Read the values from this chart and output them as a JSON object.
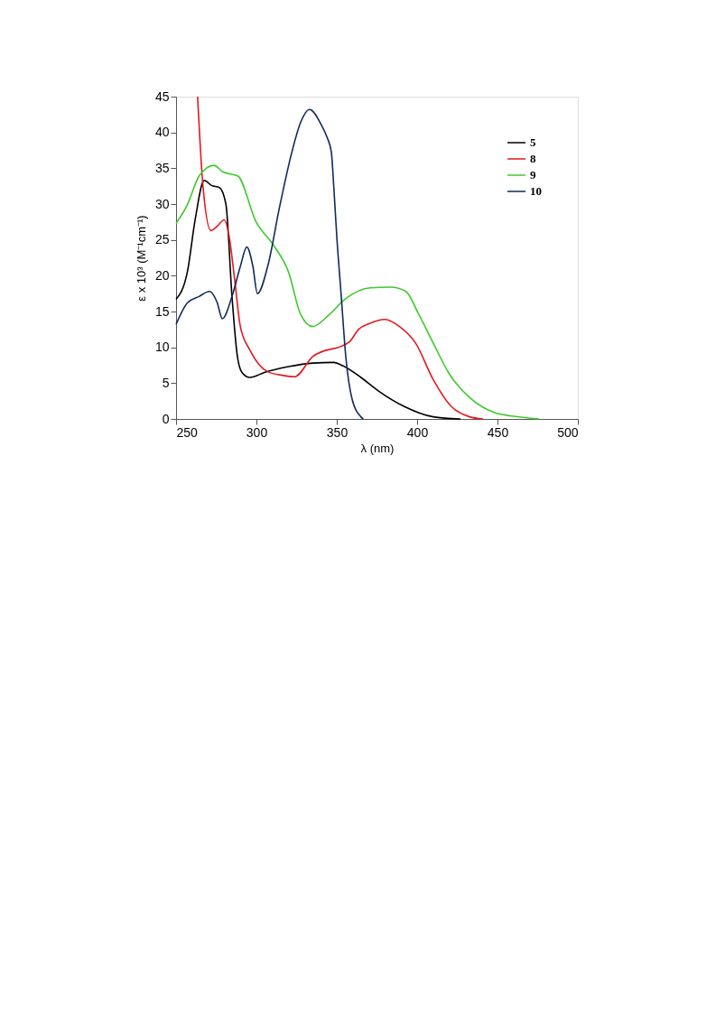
{
  "chart_data": {
    "type": "line",
    "xlabel": "λ (nm)",
    "ylabel": "ε x 10³ (M⁻¹cm⁻¹)",
    "xlim": [
      250,
      500
    ],
    "xticks": [
      250,
      300,
      350,
      400,
      450,
      500
    ],
    "ylim": [
      0,
      45
    ],
    "yticks": [
      0,
      5,
      10,
      15,
      20,
      25,
      30,
      35,
      40,
      45
    ],
    "grid": false,
    "legend": "top right",
    "marker": "none",
    "line_style": "solid",
    "series": [
      {
        "name": "5",
        "color": "#000000",
        "x": [
          250,
          257,
          262,
          267.5,
          272,
          277,
          281,
          284.8,
          288,
          291,
          296,
          305,
          320,
          335,
          348,
          354,
          365,
          376,
          391.5,
          410,
          427
        ],
        "values": [
          16.7,
          20.5,
          28,
          33.3,
          32.6,
          32.3,
          30,
          17.1,
          9,
          6.5,
          5.8,
          6.5,
          7.3,
          7.8,
          7.9,
          7.4,
          5.8,
          3.9,
          1.8,
          0.3,
          0
        ]
      },
      {
        "name": "8",
        "color": "#e3191e",
        "x": [
          263.4,
          266.7,
          271.7,
          276,
          280,
          283,
          286.6,
          290,
          296,
          307,
          316,
          323.8,
          335,
          358,
          363.5,
          370,
          380,
          389,
          399,
          410,
          421,
          432.6,
          441
        ],
        "values": [
          45,
          32.6,
          26.3,
          27,
          27.8,
          25.5,
          19.2,
          12.9,
          9.6,
          6.6,
          6.1,
          5.9,
          8.7,
          10.8,
          12.5,
          13.3,
          13.9,
          12.9,
          10.6,
          5.5,
          1.8,
          0.3,
          0
        ]
      },
      {
        "name": "9",
        "color": "#3ec92d",
        "x": [
          250,
          257,
          264.3,
          273.6,
          279,
          288.5,
          299.6,
          310.8,
          320,
          327.5,
          335,
          345,
          355.6,
          370.8,
          383.7,
          393,
          400.6,
          410,
          419.7,
          432.6,
          447.8,
          459,
          476
        ],
        "values": [
          27.3,
          29.9,
          33.9,
          35.4,
          34.5,
          33.9,
          27.6,
          24.2,
          20.5,
          14.6,
          12.9,
          14.5,
          16.8,
          18.3,
          18.4,
          17.8,
          14.8,
          10.6,
          6.4,
          3.0,
          0.9,
          0.4,
          0
        ]
      },
      {
        "name": "10",
        "color": "#0f2a5c",
        "x": [
          250,
          257,
          264.3,
          270.8,
          275.5,
          278.8,
          284.8,
          290,
          294,
          297.8,
          300.6,
          307,
          314.5,
          322,
          327.5,
          333,
          340.5,
          344,
          346.6,
          348.3,
          350,
          352.8,
          355.6,
          359.5,
          365,
          366.5
        ],
        "values": [
          13.2,
          16.2,
          17.1,
          17.8,
          16.3,
          14.0,
          17.1,
          21.3,
          24.0,
          21.3,
          17.5,
          21.3,
          29.7,
          37.2,
          41.4,
          43.2,
          41,
          39.3,
          37.3,
          31.8,
          25.5,
          17.1,
          8.7,
          2.8,
          0.3,
          0
        ]
      }
    ]
  }
}
